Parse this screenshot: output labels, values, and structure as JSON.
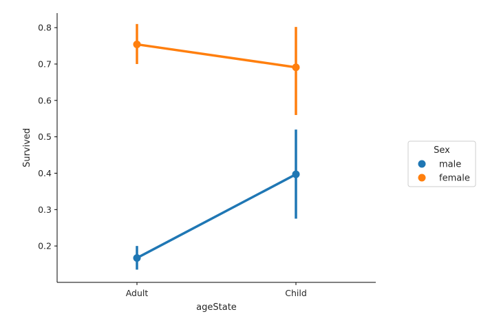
{
  "chart_data": {
    "type": "line",
    "subtype": "pointplot",
    "title": "",
    "xlabel": "ageState",
    "ylabel": "Survived",
    "categories": [
      "Adult",
      "Child"
    ],
    "ylim": [
      0.1,
      0.84
    ],
    "yticks": [
      0.2,
      0.3,
      0.4,
      0.5,
      0.6,
      0.7,
      0.8
    ],
    "ytick_labels": [
      "0.2",
      "0.3",
      "0.4",
      "0.5",
      "0.6",
      "0.7",
      "0.8"
    ],
    "grid": false,
    "legend": {
      "title": "Sex",
      "position": "right"
    },
    "series": [
      {
        "name": "male",
        "color": "#1f77b4",
        "values": [
          0.167,
          0.397
        ],
        "ci_low": [
          0.135,
          0.275
        ],
        "ci_high": [
          0.2,
          0.52
        ]
      },
      {
        "name": "female",
        "color": "#ff7f0e",
        "values": [
          0.754,
          0.691
        ],
        "ci_low": [
          0.7,
          0.56
        ],
        "ci_high": [
          0.81,
          0.802
        ]
      }
    ]
  }
}
